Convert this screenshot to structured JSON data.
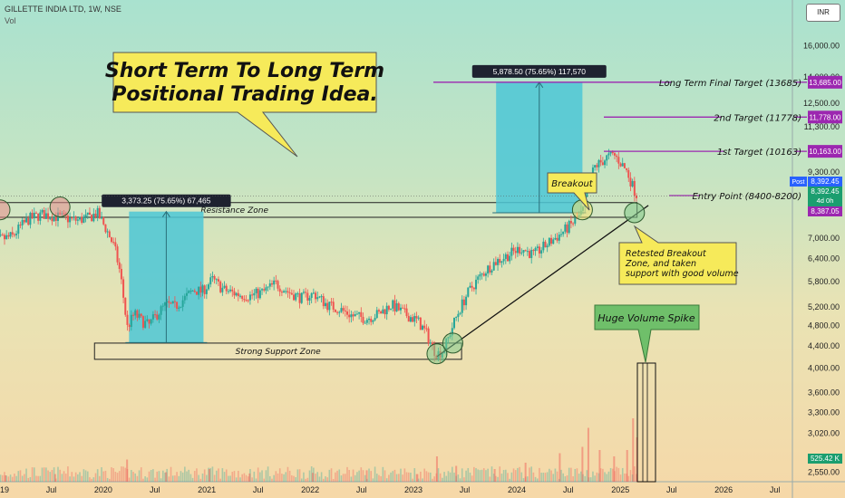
{
  "header": {
    "symbol": "GILLETTE INDIA LTD, 1W, NSE",
    "volume_label": "Vol",
    "currency": "INR"
  },
  "chart_data": {
    "type": "candlestick",
    "y_scale": "log",
    "ylim": [
      2450,
      19500
    ],
    "y_ticks": [
      {
        "value": 16000,
        "label": "16,000.00"
      },
      {
        "value": 14000,
        "label": "14,000.00"
      },
      {
        "value": 12500,
        "label": "12,500.00"
      },
      {
        "value": 11300,
        "label": "11,300.00"
      },
      {
        "value": 9300,
        "label": "9,300.00"
      },
      {
        "value": 7000,
        "label": "7,000.00"
      },
      {
        "value": 6400,
        "label": "6,400.00"
      },
      {
        "value": 5800,
        "label": "5,800.00"
      },
      {
        "value": 5200,
        "label": "5,200.00"
      },
      {
        "value": 4800,
        "label": "4,800.00"
      },
      {
        "value": 4400,
        "label": "4,400.00"
      },
      {
        "value": 4000,
        "label": "4,000.00"
      },
      {
        "value": 3600,
        "label": "3,600.00"
      },
      {
        "value": 3300,
        "label": "3,300.00"
      },
      {
        "value": 3020,
        "label": "3,020.00"
      },
      {
        "value": 2550,
        "label": "2,550.00"
      }
    ],
    "x_range": [
      "2019-01-01",
      "2026-09-01"
    ],
    "x_ticks": [
      {
        "date": "2019-01-01",
        "label": "2019"
      },
      {
        "date": "2019-07-01",
        "label": "Jul"
      },
      {
        "date": "2020-01-01",
        "label": "2020"
      },
      {
        "date": "2020-07-01",
        "label": "Jul"
      },
      {
        "date": "2021-01-01",
        "label": "2021"
      },
      {
        "date": "2021-07-01",
        "label": "Jul"
      },
      {
        "date": "2022-01-01",
        "label": "2022"
      },
      {
        "date": "2022-07-01",
        "label": "Jul"
      },
      {
        "date": "2023-01-01",
        "label": "2023"
      },
      {
        "date": "2023-07-01",
        "label": "Jul"
      },
      {
        "date": "2024-01-01",
        "label": "2024"
      },
      {
        "date": "2024-07-01",
        "label": "Jul"
      },
      {
        "date": "2025-01-01",
        "label": "2025"
      },
      {
        "date": "2025-07-01",
        "label": "Jul"
      },
      {
        "date": "2026-01-01",
        "label": "2026"
      },
      {
        "date": "2026-07-01",
        "label": "Jul"
      }
    ],
    "price_path": [
      [
        "2018-11-15",
        6900
      ],
      [
        "2019-01-01",
        6950
      ],
      [
        "2019-02-15",
        7050
      ],
      [
        "2019-03-15",
        7350
      ],
      [
        "2019-04-15",
        7600
      ],
      [
        "2019-06-01",
        7750
      ],
      [
        "2019-08-01",
        7650
      ],
      [
        "2019-10-01",
        7550
      ],
      [
        "2019-11-15",
        7650
      ],
      [
        "2019-12-10",
        7800
      ],
      [
        "2020-01-15",
        7200
      ],
      [
        "2020-02-10",
        6700
      ],
      [
        "2020-03-01",
        6000
      ],
      [
        "2020-03-25",
        4750
      ],
      [
        "2020-04-20",
        5050
      ],
      [
        "2020-05-15",
        4900
      ],
      [
        "2020-06-10",
        4800
      ],
      [
        "2020-07-10",
        5050
      ],
      [
        "2020-08-10",
        5250
      ],
      [
        "2020-09-10",
        5200
      ],
      [
        "2020-10-15",
        5400
      ],
      [
        "2020-11-15",
        5600
      ],
      [
        "2020-12-15",
        5550
      ],
      [
        "2021-01-20",
        5850
      ],
      [
        "2021-03-01",
        5600
      ],
      [
        "2021-04-15",
        5500
      ],
      [
        "2021-06-01",
        5450
      ],
      [
        "2021-07-20",
        5550
      ],
      [
        "2021-09-01",
        5750
      ],
      [
        "2021-10-15",
        5550
      ],
      [
        "2021-12-01",
        5400
      ],
      [
        "2022-01-15",
        5500
      ],
      [
        "2022-03-01",
        5250
      ],
      [
        "2022-04-15",
        5150
      ],
      [
        "2022-06-01",
        5000
      ],
      [
        "2022-07-20",
        4950
      ],
      [
        "2022-09-01",
        5050
      ],
      [
        "2022-10-15",
        5250
      ],
      [
        "2022-12-01",
        5050
      ],
      [
        "2023-01-15",
        4900
      ],
      [
        "2023-02-15",
        4650
      ],
      [
        "2023-03-10",
        4350
      ],
      [
        "2023-03-25",
        4250
      ],
      [
        "2023-04-15",
        4300
      ],
      [
        "2023-05-01",
        4500
      ],
      [
        "2023-05-20",
        4800
      ],
      [
        "2023-06-10",
        5100
      ],
      [
        "2023-07-10",
        5500
      ],
      [
        "2023-08-10",
        5800
      ],
      [
        "2023-09-15",
        6100
      ],
      [
        "2023-10-15",
        6300
      ],
      [
        "2023-12-01",
        6500
      ],
      [
        "2024-01-15",
        6700
      ],
      [
        "2024-03-01",
        6500
      ],
      [
        "2024-04-15",
        6800
      ],
      [
        "2024-06-01",
        7100
      ],
      [
        "2024-07-10",
        7400
      ],
      [
        "2024-08-01",
        7600
      ],
      [
        "2024-08-20",
        7800
      ],
      [
        "2024-09-10",
        8700
      ],
      [
        "2024-10-01",
        9500
      ],
      [
        "2024-10-25",
        9700
      ],
      [
        "2024-11-15",
        9900
      ],
      [
        "2024-12-10",
        10000
      ],
      [
        "2025-01-01",
        9700
      ],
      [
        "2025-01-25",
        9300
      ],
      [
        "2025-02-15",
        8700
      ],
      [
        "2025-03-01",
        8392
      ]
    ],
    "volume": [
      [
        "2019-01-20",
        0.1
      ],
      [
        "2019-07-15",
        0.12
      ],
      [
        "2020-03-25",
        0.35
      ],
      [
        "2020-08-10",
        0.15
      ],
      [
        "2021-01-10",
        0.2
      ],
      [
        "2021-06-01",
        0.13
      ],
      [
        "2022-01-10",
        0.14
      ],
      [
        "2022-07-20",
        0.18
      ],
      [
        "2023-01-15",
        0.12
      ],
      [
        "2023-03-25",
        0.4
      ],
      [
        "2023-06-01",
        0.25
      ],
      [
        "2023-10-15",
        0.2
      ],
      [
        "2024-02-01",
        0.3
      ],
      [
        "2024-06-01",
        0.45
      ],
      [
        "2024-08-20",
        0.55
      ],
      [
        "2024-09-10",
        0.85
      ],
      [
        "2024-10-20",
        0.5
      ],
      [
        "2024-12-10",
        0.4
      ],
      [
        "2025-01-25",
        0.5
      ],
      [
        "2025-02-15",
        1.0
      ],
      [
        "2025-03-01",
        0.7
      ]
    ],
    "targets": [
      {
        "label": "Long Term Final Target (13685)",
        "value": 13685,
        "badge": "13,685.00"
      },
      {
        "label": "2nd Target (11778)",
        "value": 11778,
        "badge": "11,778.00"
      },
      {
        "label": "1st Target (10163)",
        "value": 10163,
        "badge": "10,163.00"
      },
      {
        "label": "Entry Point (8400-8200)",
        "value": 8400
      }
    ],
    "price_badges": {
      "post_label": "Post",
      "post_value": "8,392.45",
      "last_value": "8,392.45",
      "time_left": "4d 0h",
      "low_value": "8,387.05",
      "volume_value": "525.42 K"
    },
    "zones": {
      "resistance": {
        "label": "Resistance Zone",
        "from": "2018-12-15",
        "to": "2025-03-01",
        "low": 7650,
        "high": 8150
      },
      "support": {
        "label": "Strong Support Zone",
        "from": "2019-12-01",
        "to": "2023-06-20",
        "low": 4150,
        "high": 4450
      }
    },
    "measures": [
      {
        "label": "3,373.25 (75.65%) 67,465",
        "from": "2020-04-01",
        "to": "2020-12-20",
        "low": 4460,
        "high": 7840
      },
      {
        "label": "5,878.50 (75.65%) 117,570",
        "from": "2023-10-20",
        "to": "2024-08-20",
        "low": 7800,
        "high": 13685
      }
    ],
    "trendline": {
      "from": [
        "2023-03-25",
        4200
      ],
      "to": [
        "2025-04-10",
        8050
      ]
    },
    "circles": [
      {
        "date": "2019-01-01",
        "value": 7900,
        "color": "#e58a8a"
      },
      {
        "date": "2019-08-01",
        "value": 8000,
        "color": "#e58a8a"
      },
      {
        "date": "2023-03-25",
        "value": 4250,
        "color": "#7fc98a"
      },
      {
        "date": "2023-05-20",
        "value": 4450,
        "color": "#7fc98a"
      },
      {
        "date": "2024-08-20",
        "value": 7900,
        "color": "#f0e070"
      },
      {
        "date": "2025-02-20",
        "value": 7800,
        "color": "#7fc98a"
      }
    ],
    "callouts": {
      "main_title": [
        "Short Term To Long Term",
        "Positional Trading Idea."
      ],
      "breakout": "Breakout",
      "retest": [
        "Retested Breakout",
        "Zone, and taken",
        "support with good volume"
      ],
      "volume_spike": "Huge Volume Spike"
    },
    "colors": {
      "up": "#26a69a",
      "down": "#ef5350",
      "target_line": "#9c27b0",
      "target_badge": "#9c27b0",
      "measure_fill": "#4cc7d6",
      "callout_yellow": "#f6ea5a",
      "callout_green": "#6fbf6a",
      "post_badge": "#2962ff",
      "last_badge": "#1b9e6f"
    }
  }
}
